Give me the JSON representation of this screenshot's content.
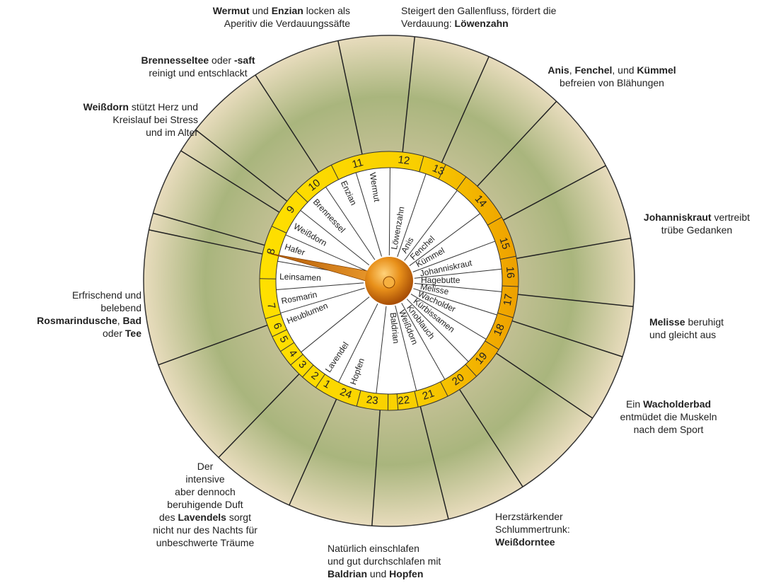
{
  "hours": [
    "1",
    "2",
    "3",
    "4",
    "5",
    "6",
    "7",
    "8",
    "9",
    "10",
    "11",
    "12",
    "13",
    "14",
    "15",
    "16",
    "17",
    "18",
    "19",
    "20",
    "21",
    "22",
    "23",
    "24"
  ],
  "herbs": [
    "Hafer",
    "Leinsamen",
    "Rosmarin",
    "Heublumen",
    "Lavendel",
    "Hopfen",
    "Baldrian",
    "Weißdorn",
    "Knoblauch",
    "Kürbissamen",
    "Wacholder",
    "Melisse",
    "Hagebutte",
    "Johanniskraut",
    "Kümmel",
    "Fenchel",
    "Anis",
    "Löwenzahn",
    "Wermut",
    "Enzian",
    "Brennessel",
    "Weißdorn"
  ],
  "annotations": [
    {
      "lines": [
        [
          {
            "text": "Wermut",
            "bold": true
          },
          {
            "text": " und ",
            "bold": false
          },
          {
            "text": "Enzian",
            "bold": true
          },
          {
            "text": " locken als",
            "bold": false
          }
        ],
        [
          {
            "text": "Aperitiv die Verdauungssäfte",
            "bold": false
          }
        ]
      ]
    },
    {
      "lines": [
        [
          {
            "text": "Steigert den Gallenfluss, fördert die",
            "bold": false
          }
        ],
        [
          {
            "text": "Verdauung: ",
            "bold": false
          },
          {
            "text": "Löwenzahn",
            "bold": true
          }
        ]
      ]
    },
    {
      "lines": [
        [
          {
            "text": "Brennesseltee",
            "bold": true
          },
          {
            "text": " oder ",
            "bold": false
          },
          {
            "text": "-saft",
            "bold": true
          }
        ],
        [
          {
            "text": "reinigt und entschlackt",
            "bold": false
          }
        ]
      ]
    },
    {
      "lines": [
        [
          {
            "text": "Weißdorn",
            "bold": true
          },
          {
            "text": " stützt Herz und",
            "bold": false
          }
        ],
        [
          {
            "text": "Kreislauf bei Stress",
            "bold": false
          }
        ],
        [
          {
            "text": "und im Alter",
            "bold": false
          }
        ]
      ]
    },
    {
      "lines": [
        [
          {
            "text": "Anis",
            "bold": true
          },
          {
            "text": ", ",
            "bold": false
          },
          {
            "text": "Fenchel",
            "bold": true
          },
          {
            "text": ", und ",
            "bold": false
          },
          {
            "text": "Kümmel",
            "bold": true
          }
        ],
        [
          {
            "text": "befreien von Blähungen",
            "bold": false
          }
        ]
      ]
    },
    {
      "lines": [
        [
          {
            "text": "Johanniskraut",
            "bold": true
          },
          {
            "text": " vertreibt",
            "bold": false
          }
        ],
        [
          {
            "text": "trübe Gedanken",
            "bold": false
          }
        ]
      ]
    },
    {
      "lines": [
        [
          {
            "text": "Melisse",
            "bold": true
          },
          {
            "text": " beruhigt",
            "bold": false
          }
        ],
        [
          {
            "text": "und gleicht aus",
            "bold": false
          }
        ]
      ]
    },
    {
      "lines": [
        [
          {
            "text": "Ein ",
            "bold": false
          },
          {
            "text": "Wacholderbad",
            "bold": true
          }
        ],
        [
          {
            "text": "entmüdet die Muskeln",
            "bold": false
          }
        ],
        [
          {
            "text": "nach dem Sport",
            "bold": false
          }
        ]
      ]
    },
    {
      "lines": [
        [
          {
            "text": "Erfrischend und",
            "bold": false
          }
        ],
        [
          {
            "text": "belebend",
            "bold": false
          }
        ],
        [
          {
            "text": "Rosmarindusche",
            "bold": true
          },
          {
            "text": ", ",
            "bold": false
          },
          {
            "text": "Bad",
            "bold": true
          }
        ],
        [
          {
            "text": "oder ",
            "bold": false
          },
          {
            "text": "Tee",
            "bold": true
          }
        ]
      ]
    },
    {
      "lines": [
        [
          {
            "text": "Der",
            "bold": false
          }
        ],
        [
          {
            "text": "intensive",
            "bold": false
          }
        ],
        [
          {
            "text": "aber dennoch",
            "bold": false
          }
        ],
        [
          {
            "text": "beruhigende Duft",
            "bold": false
          }
        ],
        [
          {
            "text": "des ",
            "bold": false
          },
          {
            "text": "Lavendels",
            "bold": true
          },
          {
            "text": " sorgt",
            "bold": false
          }
        ],
        [
          {
            "text": "nicht nur des Nachts für",
            "bold": false
          }
        ],
        [
          {
            "text": "unbeschwerte Träume",
            "bold": false
          }
        ]
      ]
    },
    {
      "lines": [
        [
          {
            "text": "Herzstärkender",
            "bold": false
          }
        ],
        [
          {
            "text": "Schlummertrunk:",
            "bold": false
          }
        ],
        [
          {
            "text": "Weißdorntee",
            "bold": true
          }
        ]
      ]
    },
    {
      "lines": [
        [
          {
            "text": "Natürlich einschlafen",
            "bold": false
          }
        ],
        [
          {
            "text": "und gut durchschlafen mit",
            "bold": false
          }
        ],
        [
          {
            "text": "Baldrian",
            "bold": true
          },
          {
            "text": " und ",
            "bold": false
          },
          {
            "text": "Hopfen",
            "bold": true
          }
        ]
      ]
    }
  ]
}
